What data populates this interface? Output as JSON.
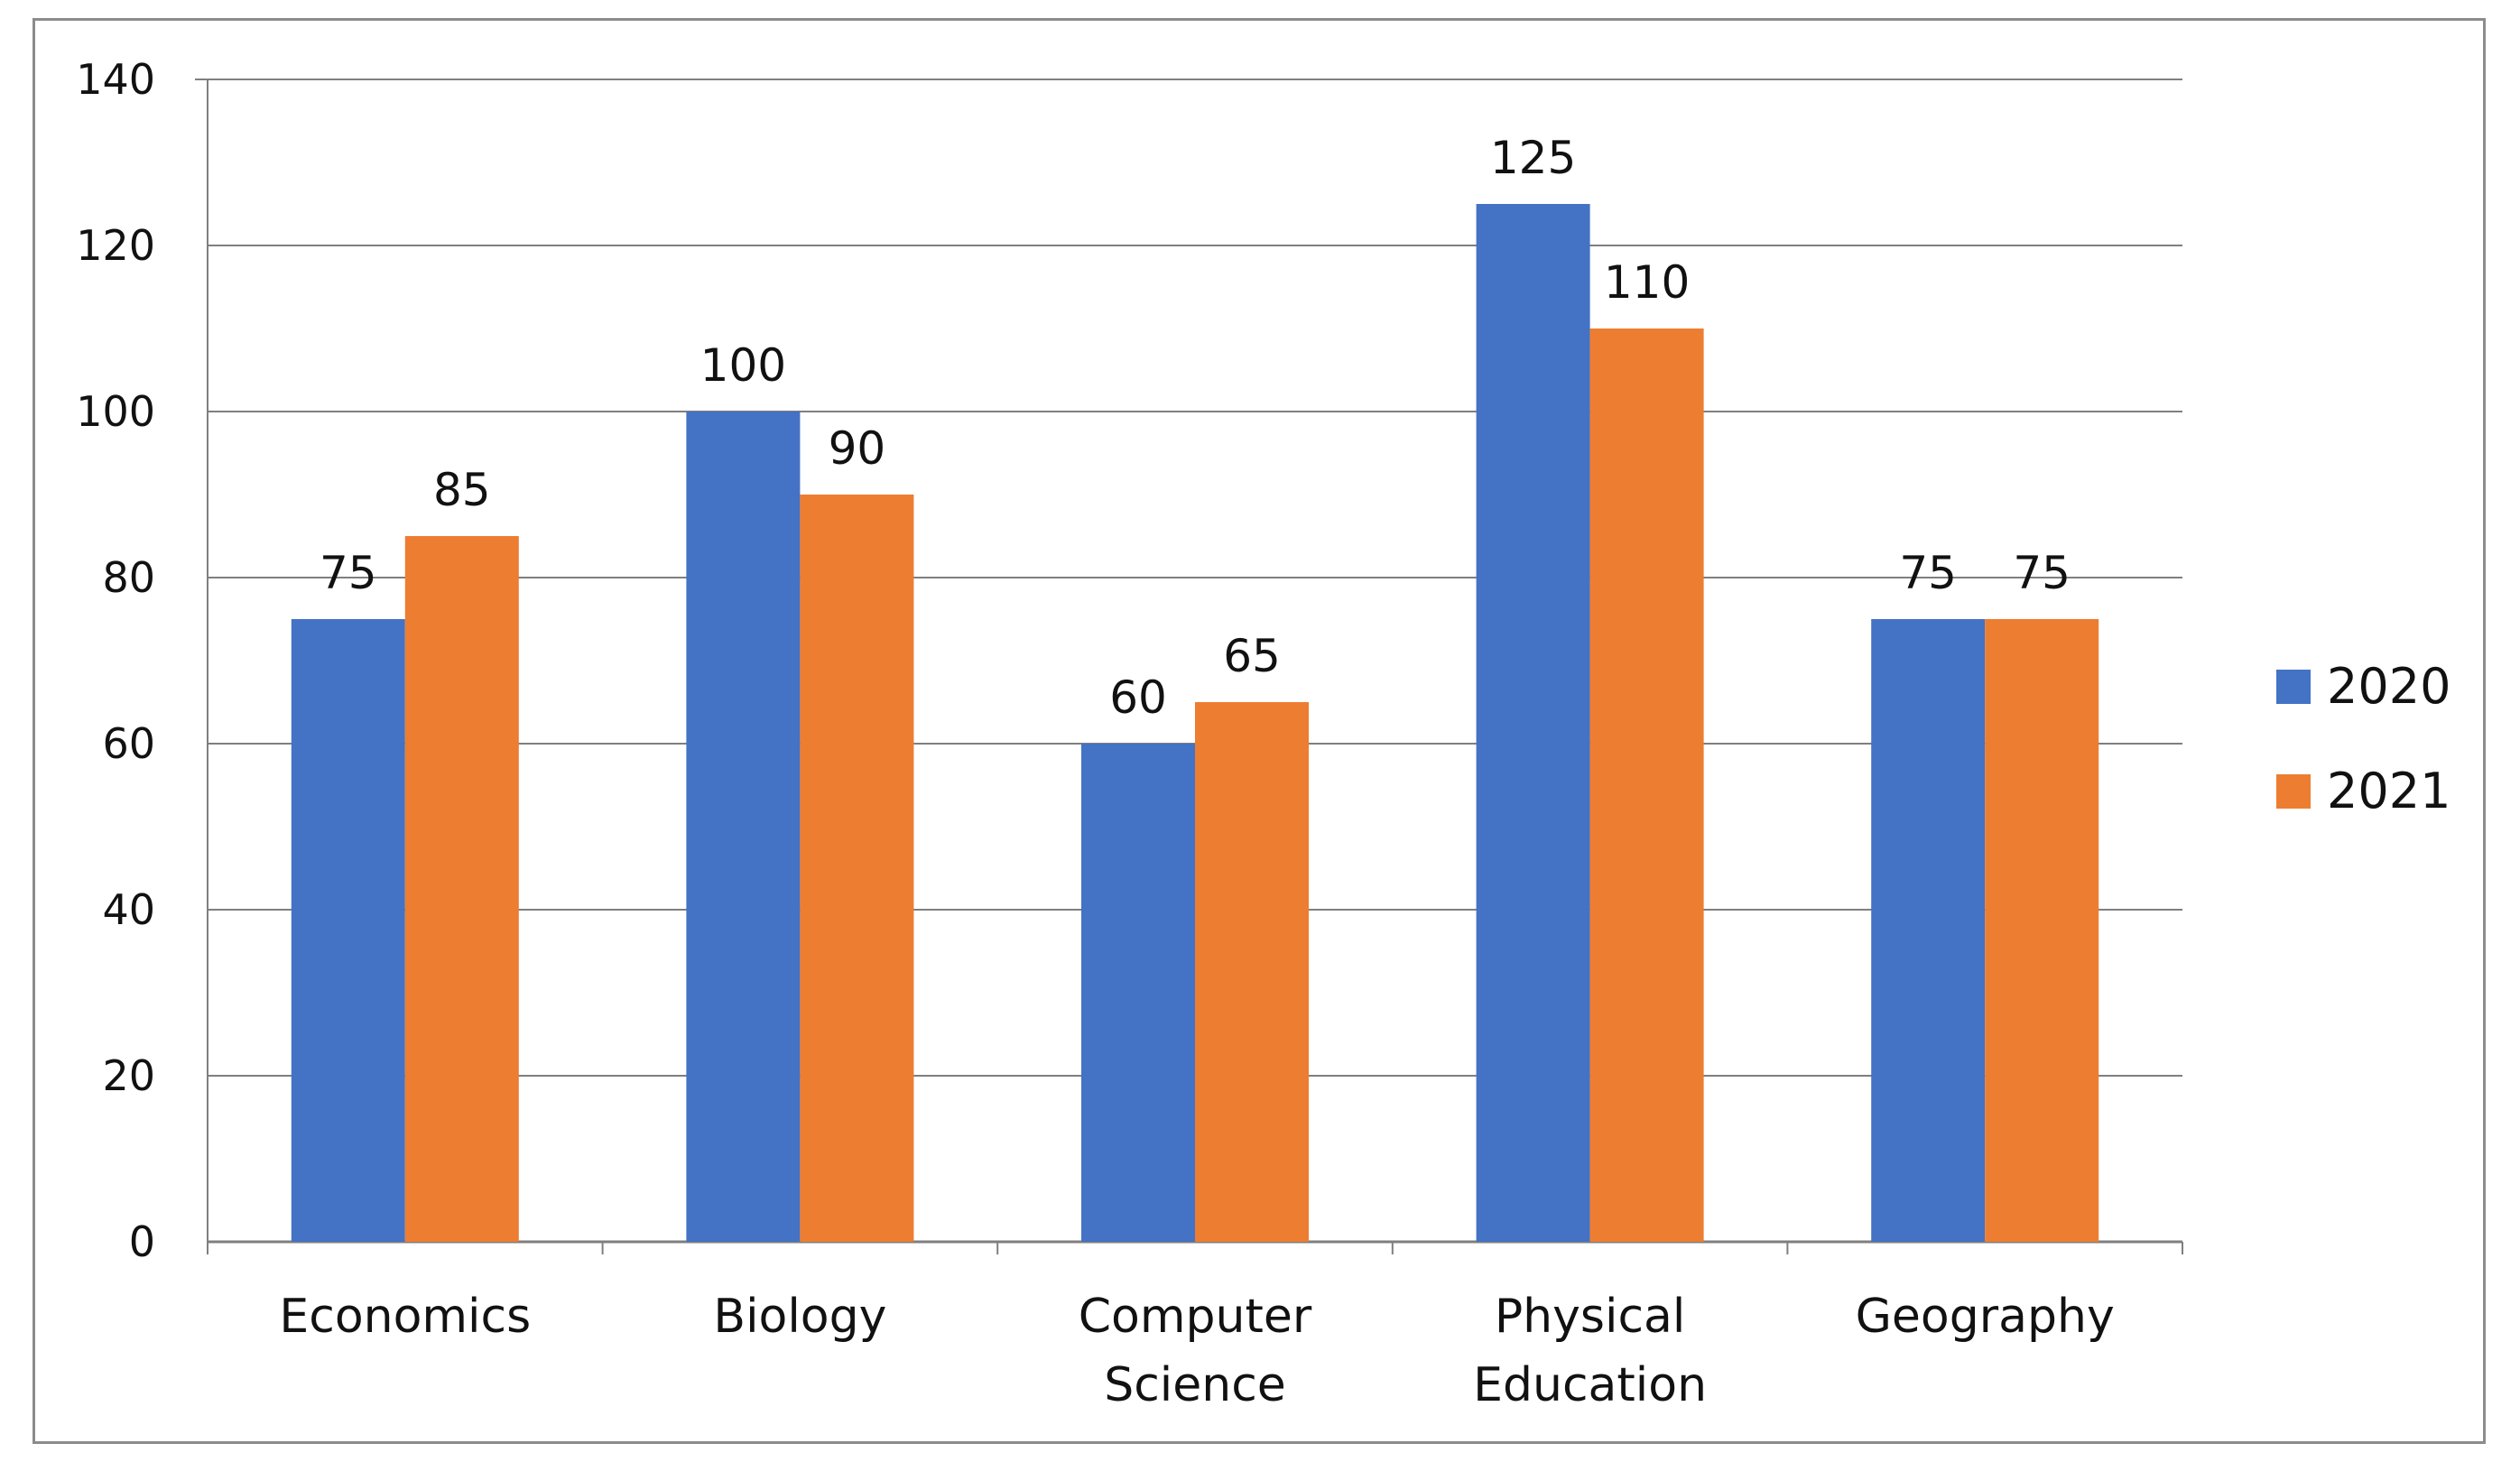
{
  "chart_data": {
    "type": "bar",
    "title": "",
    "xlabel": "",
    "ylabel": "",
    "categories": [
      [
        "Economics"
      ],
      [
        "Biology"
      ],
      [
        "Computer",
        "Science"
      ],
      [
        "Physical",
        "Education"
      ],
      [
        "Geography"
      ]
    ],
    "series": [
      {
        "name": "2020",
        "color": "#4472C4",
        "values": [
          75,
          100,
          60,
          125,
          75
        ]
      },
      {
        "name": "2021",
        "color": "#ED7D31",
        "values": [
          85,
          90,
          65,
          110,
          75
        ]
      }
    ],
    "ylim": [
      0,
      140
    ],
    "yticks": [
      "0",
      "20",
      "40",
      "60",
      "80",
      "100",
      "120",
      "140"
    ],
    "data_labels": true,
    "grid": true,
    "legend_position": "right"
  }
}
